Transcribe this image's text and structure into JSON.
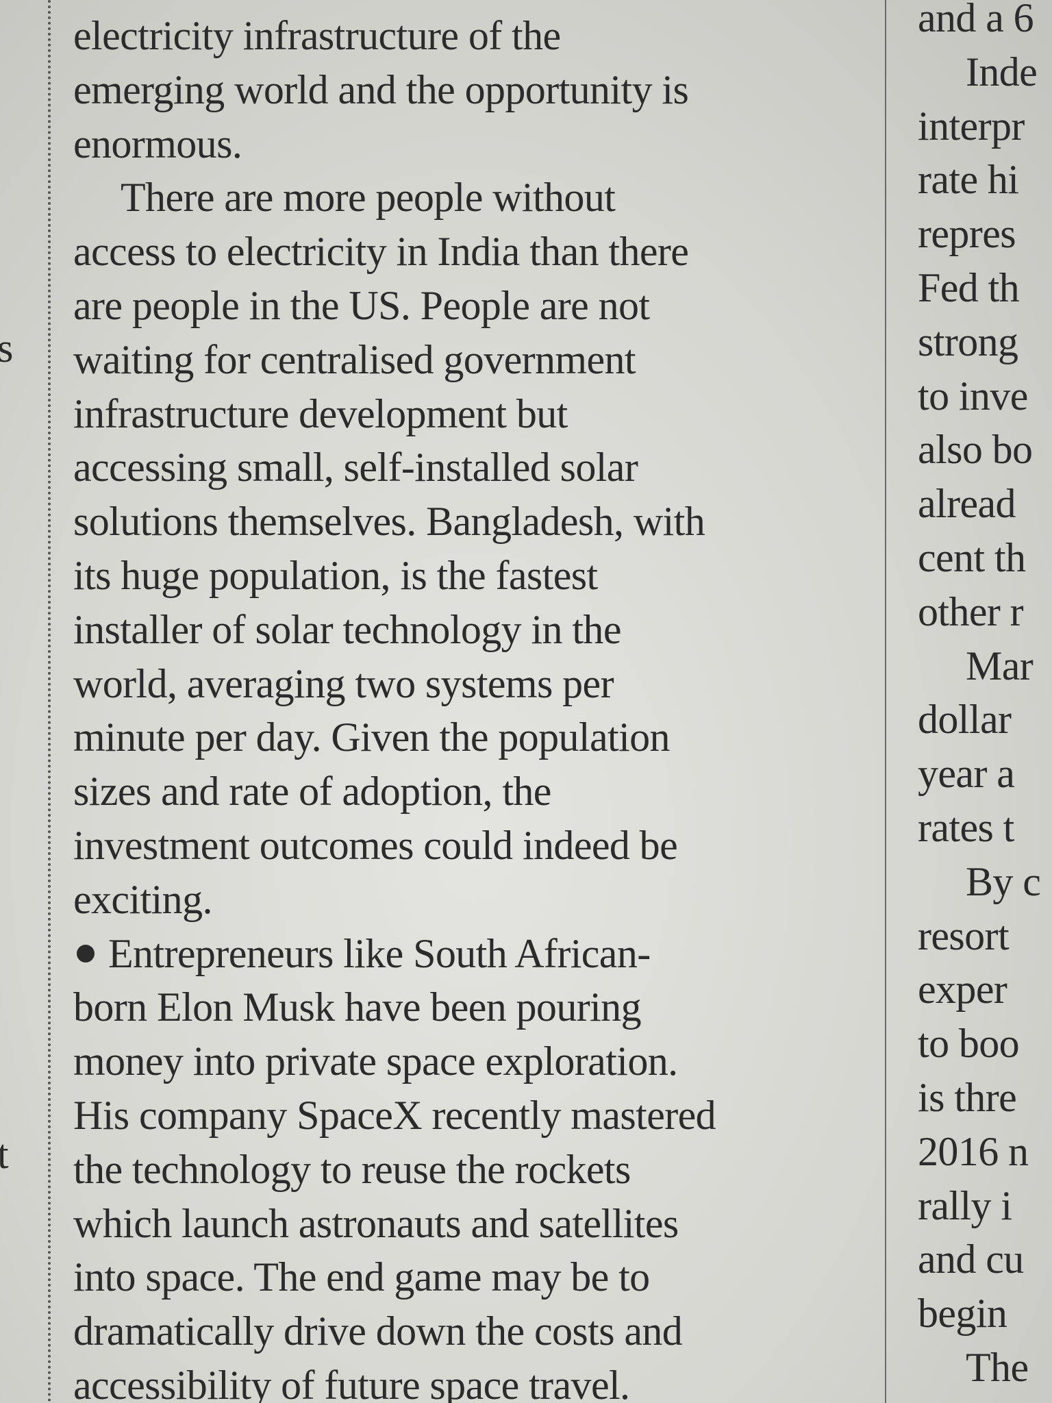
{
  "left_margin": {
    "fragments": [
      "s",
      "t"
    ]
  },
  "main_column": {
    "paragraphs": [
      {
        "lines": [
          "electricity infrastructure of the",
          "emerging world and the opportunity is",
          "enormous."
        ]
      },
      {
        "lines": [
          "There are more people without",
          "access to electricity in India than there",
          "are people in the US. People are not",
          "waiting for centralised government",
          "infrastructure development but",
          "accessing small, self-installed solar",
          "solutions themselves. Bangladesh, with",
          "its huge population, is the fastest",
          "installer of solar technology in the",
          "world, averaging two systems per",
          "minute per day. Given the population",
          "sizes and rate of adoption, the",
          "investment outcomes could indeed be",
          "exciting."
        ]
      },
      {
        "lines": [
          "Entrepreneurs like South African-",
          "born Elon Musk have been pouring",
          "money into private space exploration.",
          "His company SpaceX recently mastered",
          "the technology to reuse the rockets",
          "which launch astronauts and satellites",
          "into space. The end game may be to",
          "dramatically drive down the costs and",
          "accessibility of future space travel."
        ]
      }
    ]
  },
  "right_column": {
    "paragraphs": [
      {
        "lines": [
          "and a 6"
        ]
      },
      {
        "lines": [
          "Inde",
          "interpr",
          "rate hi",
          "repres",
          "Fed th",
          "strong",
          "to inve",
          "also bo",
          "alread",
          "cent th",
          "other r"
        ]
      },
      {
        "lines": [
          "Mar",
          "dollar",
          "year a",
          "rates t"
        ]
      },
      {
        "lines": [
          "By c",
          "resort",
          "exper",
          "to boo",
          "is thre",
          "2016 n",
          "rally i",
          "and cu",
          "begin"
        ]
      },
      {
        "lines": [
          "The"
        ]
      }
    ]
  }
}
